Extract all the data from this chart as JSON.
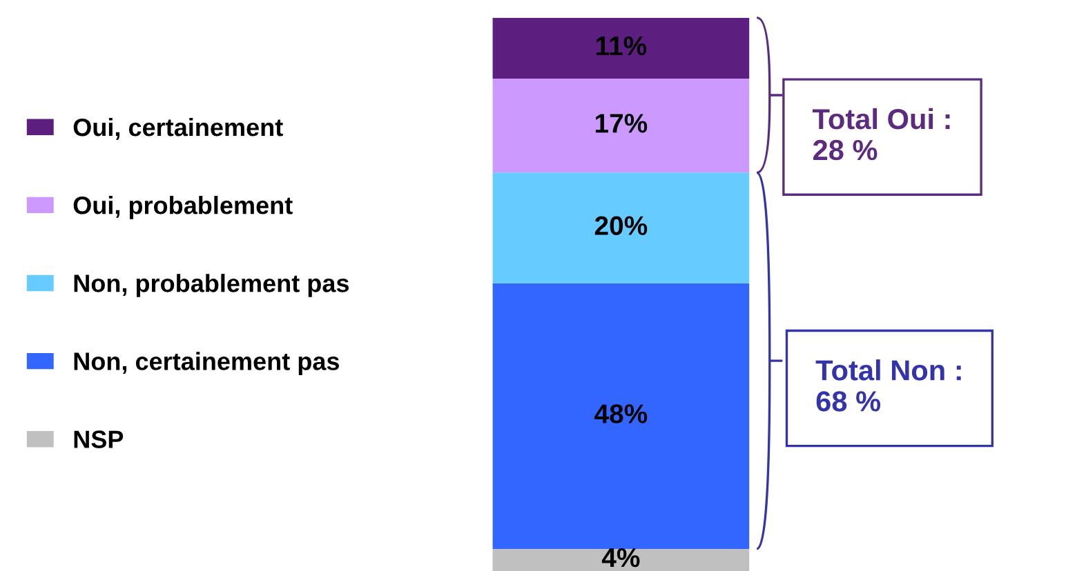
{
  "chart_data": {
    "type": "bar",
    "stacked": true,
    "categories": [
      null
    ],
    "legend": "left",
    "grid": false,
    "series": [
      {
        "name": "NSP",
        "color": "#c0c0c0",
        "values": [
          4
        ],
        "value_labels": [
          "4%"
        ]
      },
      {
        "name": "Non, certainement pas",
        "color": "#3366ff",
        "values": [
          48
        ],
        "value_labels": [
          "48%"
        ]
      },
      {
        "name": "Non, probablement pas",
        "color": "#66ccff",
        "values": [
          20
        ],
        "value_labels": [
          "20%"
        ]
      },
      {
        "name": "Oui, probablement",
        "color": "#cc99ff",
        "values": [
          17
        ],
        "value_labels": [
          "17%"
        ]
      },
      {
        "name": "Oui, certainement",
        "color": "#5c1f80",
        "values": [
          11
        ],
        "value_labels": [
          "11%"
        ]
      }
    ],
    "annotations": [
      "Total Oui :\n28 %",
      "Total Non :\n68 %"
    ]
  }
}
